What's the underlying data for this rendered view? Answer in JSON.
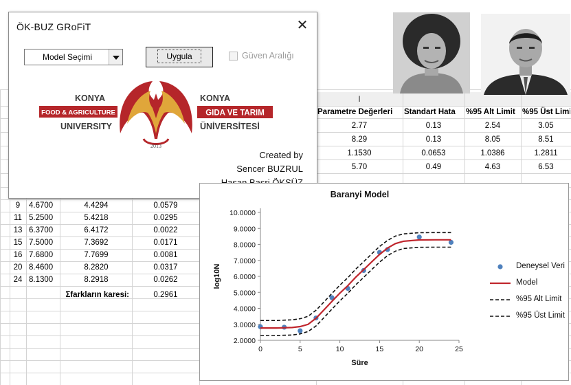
{
  "dialog": {
    "title": "ÖK-BUZ GRoFiT",
    "model_select_label": "Model Seçimi",
    "apply_button": "Uygula",
    "confidence_label": "Güven Aralığı",
    "confidence_checked": false,
    "logo": {
      "en_line1": "KONYA",
      "en_line2": "FOOD & AGRICULTURE",
      "en_line3": "UNIVERSITY",
      "tr_line1": "KONYA",
      "tr_line2": "GIDA VE TARIM",
      "tr_line3": "ÜNİVERSİTESİ",
      "year": "2013"
    },
    "credits": [
      "Created by",
      "Sencer BUZRUL",
      "Hasan Basri ÖKSÜZ"
    ]
  },
  "sheet": {
    "col_header_i": "I",
    "param_header": "Parametre Değerleri",
    "param_header_2": "Standart Hata",
    "param_header_3": "%95 Alt Limit",
    "param_header_4": "%95 Üst Limit",
    "param_rows": [
      [
        "2.77",
        "0.13",
        "2.54",
        "3.05"
      ],
      [
        "8.29",
        "0.13",
        "8.05",
        "8.51"
      ],
      [
        "1.1530",
        "0.0653",
        "1.0386",
        "1.2811"
      ],
      [
        "5.70",
        "0.49",
        "4.63",
        "6.53"
      ]
    ],
    "data_rows": [
      [
        "9",
        "4.6700",
        "4.4294",
        "0.0579"
      ],
      [
        "11",
        "5.2500",
        "5.4218",
        "0.0295"
      ],
      [
        "13",
        "6.3700",
        "6.4172",
        "0.0022"
      ],
      [
        "15",
        "7.5000",
        "7.3692",
        "0.0171"
      ],
      [
        "16",
        "7.6800",
        "7.7699",
        "0.0081"
      ],
      [
        "20",
        "8.4600",
        "8.2820",
        "0.0317"
      ],
      [
        "24",
        "8.1300",
        "8.2918",
        "0.0262"
      ]
    ],
    "row_stubs": [
      "",
      "",
      "",
      "",
      "",
      "",
      ""
    ],
    "sum_label": "Σfarkların karesi:",
    "sum_value": "0.2961"
  },
  "colors": {
    "brand_red": "#b5262a",
    "model_line": "#c0262d",
    "points": "#4f81bd",
    "limits": "#111111"
  },
  "chart_data": {
    "type": "line",
    "title": "Baranyi Model",
    "xlabel": "Süre",
    "ylabel": "log10N",
    "xlim": [
      0,
      25
    ],
    "ylim": [
      2.0,
      10.0
    ],
    "xticks": [
      0,
      5,
      10,
      15,
      20,
      25
    ],
    "yticks": [
      "2.0000",
      "3.0000",
      "4.0000",
      "5.0000",
      "6.0000",
      "7.0000",
      "8.0000",
      "9.0000",
      "10.0000"
    ],
    "legend_position": "right",
    "series": [
      {
        "name": "Deneysel Veri",
        "kind": "scatter",
        "x": [
          0,
          3,
          5,
          7,
          9,
          11,
          13,
          15,
          16,
          20,
          24
        ],
        "y": [
          2.85,
          2.82,
          2.6,
          3.4,
          4.67,
          5.25,
          6.37,
          7.5,
          7.68,
          8.46,
          8.13
        ]
      },
      {
        "name": "Model",
        "kind": "line",
        "x": [
          0,
          2,
          4,
          5,
          6,
          7,
          8,
          9,
          10,
          11,
          12,
          13,
          14,
          15,
          16,
          17,
          18,
          20,
          22,
          24
        ],
        "y": [
          2.77,
          2.77,
          2.8,
          2.86,
          3.0,
          3.38,
          3.9,
          4.43,
          4.95,
          5.42,
          5.95,
          6.42,
          6.9,
          7.37,
          7.77,
          8.05,
          8.2,
          8.28,
          8.29,
          8.29
        ]
      },
      {
        "name": "%95 Alt Limit",
        "kind": "dashed",
        "x": [
          0,
          2,
          4,
          5,
          6,
          7,
          8,
          9,
          10,
          11,
          12,
          13,
          14,
          15,
          16,
          17,
          18,
          20,
          22,
          24
        ],
        "y": [
          2.3,
          2.3,
          2.33,
          2.4,
          2.55,
          2.9,
          3.42,
          3.95,
          4.47,
          4.94,
          5.47,
          5.94,
          6.42,
          6.89,
          7.3,
          7.58,
          7.74,
          7.82,
          7.83,
          7.83
        ]
      },
      {
        "name": "%95 Üst Limit",
        "kind": "dashed",
        "x": [
          0,
          2,
          4,
          5,
          6,
          7,
          8,
          9,
          10,
          11,
          12,
          13,
          14,
          15,
          16,
          17,
          18,
          20,
          22,
          24
        ],
        "y": [
          3.24,
          3.24,
          3.28,
          3.35,
          3.5,
          3.88,
          4.4,
          4.93,
          5.45,
          5.92,
          6.45,
          6.92,
          7.4,
          7.87,
          8.25,
          8.52,
          8.66,
          8.73,
          8.74,
          8.74
        ]
      }
    ]
  }
}
